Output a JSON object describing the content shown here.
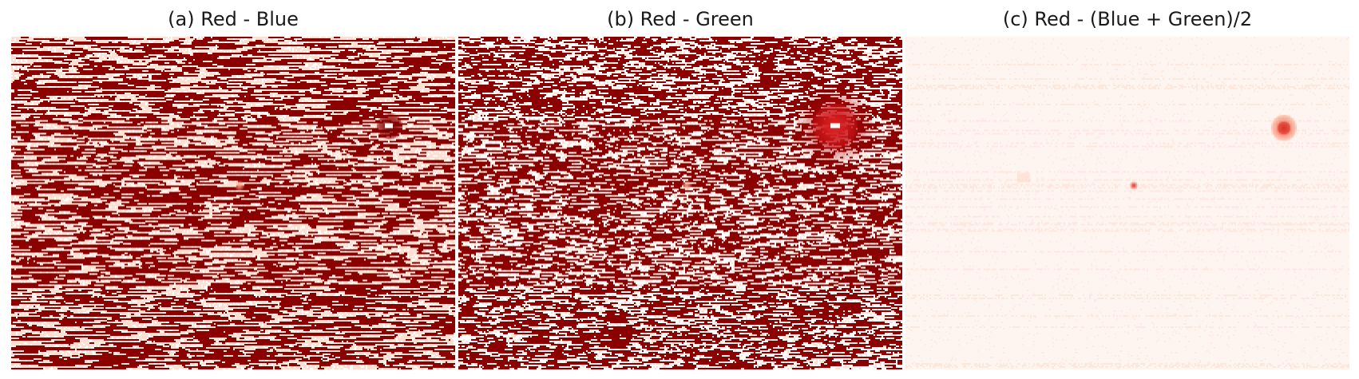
{
  "figure": {
    "panels": [
      {
        "title": "(a) Red - Blue",
        "colormap": "Reds",
        "pattern": "horizontal-streak-noise",
        "colors": {
          "low": "#fee0d2",
          "high": "#8b0000"
        }
      },
      {
        "title": "(b) Red - Green",
        "colormap": "Reds",
        "pattern": "dense-blocky-noise",
        "colors": {
          "low": "#fee0d2",
          "high": "#8b0000"
        }
      },
      {
        "title": "(c) Red - (Blue + Green)/2",
        "colormap": "Reds",
        "pattern": "faint-background",
        "colors": {
          "low": "#fff5f0",
          "high": "#e3483a"
        }
      }
    ]
  }
}
